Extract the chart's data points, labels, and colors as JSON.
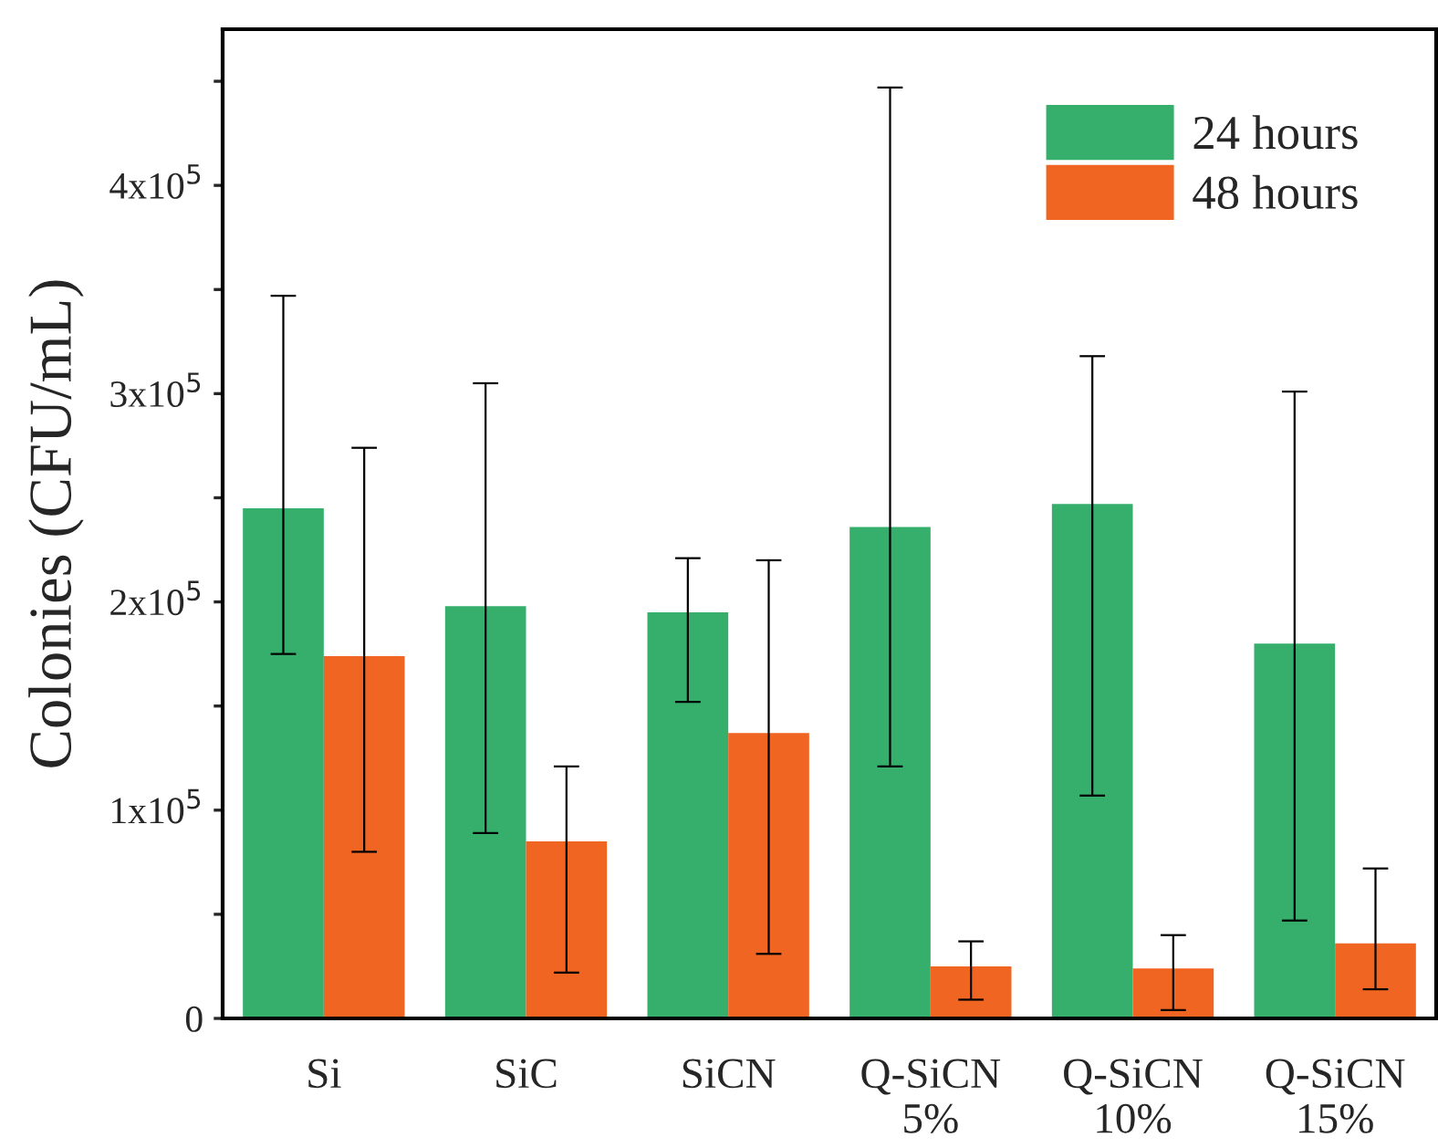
{
  "chart_data": {
    "type": "bar",
    "ylabel": "Colonies (CFU/mL)",
    "categories": [
      "Si",
      "SiC",
      "SiCN",
      "Q-SiCN\n5%",
      "Q-SiCN\n10%",
      "Q-SiCN\n15%"
    ],
    "series": [
      {
        "name": "24 hours",
        "color": "#36ae6c",
        "values": [
          245000,
          198000,
          195000,
          236000,
          247000,
          180000
        ],
        "errors": [
          [
            175000,
            347000
          ],
          [
            89000,
            305000
          ],
          [
            152000,
            221000
          ],
          [
            121000,
            447000
          ],
          [
            107000,
            318000
          ],
          [
            47000,
            301000
          ]
        ]
      },
      {
        "name": "48 hours",
        "color": "#f06522",
        "values": [
          174000,
          85000,
          137000,
          25000,
          24000,
          36000
        ],
        "errors": [
          [
            80000,
            274000
          ],
          [
            22000,
            121000
          ],
          [
            31000,
            220000
          ],
          [
            9000,
            37000
          ],
          [
            4000,
            40000
          ],
          [
            14000,
            72000
          ]
        ]
      }
    ],
    "ylim": [
      0,
      475000
    ],
    "yticks": [
      {
        "value": 0,
        "label": "0"
      },
      {
        "value": 50000,
        "label": null
      },
      {
        "value": 100000,
        "label": "1x10$^{5}$"
      },
      {
        "value": 150000,
        "label": null
      },
      {
        "value": 200000,
        "label": "2x10$^{5}$"
      },
      {
        "value": 250000,
        "label": null
      },
      {
        "value": 300000,
        "label": "3x10$^{5}$"
      },
      {
        "value": 350000,
        "label": null
      },
      {
        "value": 400000,
        "label": "4x10$^{5}$"
      },
      {
        "value": 450000,
        "label": null
      }
    ],
    "legend": "top right",
    "grid": false
  }
}
